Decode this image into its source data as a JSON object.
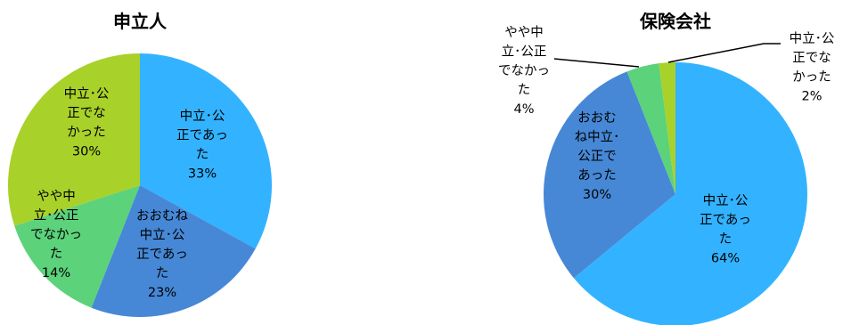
{
  "chart_data": [
    {
      "type": "pie",
      "title": "申立人",
      "start_angle_deg": 0,
      "direction": "clockwise",
      "slices": [
        {
          "label_lines": [
            "中立･公",
            "正であっ",
            "た"
          ],
          "value": 33,
          "value_text": "33%",
          "color": "#33B3FF"
        },
        {
          "label_lines": [
            "おおむね",
            "中立･公",
            "正であっ",
            "た"
          ],
          "value": 23,
          "value_text": "23%",
          "color": "#4688D6"
        },
        {
          "label_lines": [
            "やや中",
            "立･公正",
            "でなかっ",
            "た"
          ],
          "value": 14,
          "value_text": "14%",
          "color": "#5CD27B"
        },
        {
          "label_lines": [
            "中立･公",
            "正でな",
            "かった"
          ],
          "value": 30,
          "value_text": "30%",
          "color": "#A8D12A"
        }
      ]
    },
    {
      "type": "pie",
      "title": "保険会社",
      "start_angle_deg": 0,
      "direction": "clockwise",
      "slices": [
        {
          "label_lines": [
            "中立･公",
            "正であっ",
            "た"
          ],
          "value": 64,
          "value_text": "64%",
          "color": "#33B3FF"
        },
        {
          "label_lines": [
            "おおむ",
            "ね中立･",
            "公正で",
            "あった"
          ],
          "value": 30,
          "value_text": "30%",
          "color": "#4688D6"
        },
        {
          "label_lines": [
            "やや中",
            "立･公正",
            "でなかっ",
            "た"
          ],
          "value": 4,
          "value_text": "4%",
          "color": "#5CD27B"
        },
        {
          "label_lines": [
            "中立･公",
            "正でな",
            "かった"
          ],
          "value": 2,
          "value_text": "2%",
          "color": "#A8D12A"
        }
      ]
    }
  ]
}
